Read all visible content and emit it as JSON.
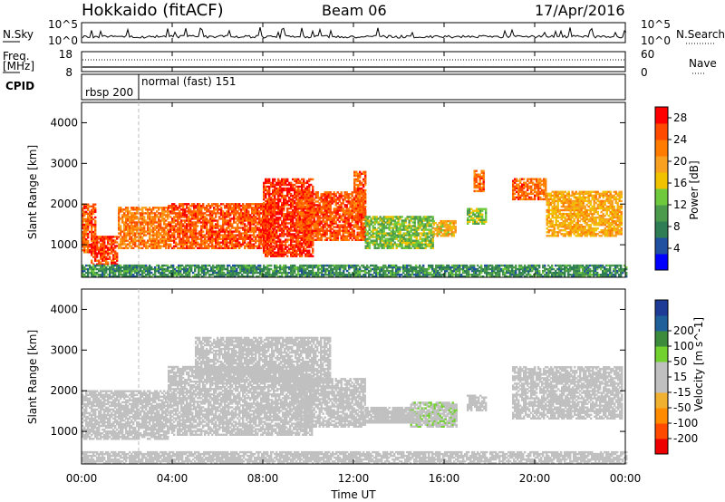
{
  "header": {
    "station": "Hokkaido (fitACF)",
    "beam": "Beam 06",
    "date": "17/Apr/2016"
  },
  "top_panels": {
    "nsky_label": "N.Sky",
    "nsky_tick_top": "10^5",
    "nsky_tick_bottom": "10^0",
    "nsearch_label": "N.Search",
    "freq_label_1": "Freq.",
    "freq_label_2": "[MHz]",
    "freq_tick_top": "18",
    "freq_tick_bottom": "8",
    "nave_tick_top": "60",
    "nave_tick_bottom": "0",
    "nave_label": "Nave",
    "cpid_label": "CPID",
    "cpid_1": "rbsp 200",
    "cpid_2": "normal (fast) 151"
  },
  "time_axis": {
    "xlabel": "Time UT",
    "ticks": [
      "00:00",
      "04:00",
      "08:00",
      "12:00",
      "16:00",
      "20:00",
      "00:00"
    ]
  },
  "colors": {
    "power_scale": [
      "#0000ff",
      "#2050a0",
      "#2e7d54",
      "#4c9a4c",
      "#6ec93c",
      "#f0c200",
      "#f8a020",
      "#ff7c00",
      "#ff4a00",
      "#ff0000"
    ],
    "velocity_scale": [
      "#ee0000",
      "#ff4a00",
      "#ff8c00",
      "#f0b030",
      "#c0c0c0",
      "#c0c0c0",
      "#72d12e",
      "#3c8a3c",
      "#20609a",
      "#1e3c96"
    ]
  },
  "chart_data": [
    {
      "type": "heatmap",
      "title": "Power",
      "ylabel": "Slant Range [km]",
      "xlabel": "",
      "x_range_hours": [
        0,
        24
      ],
      "ylim": [
        200,
        4500
      ],
      "y_ticks": [
        "1000",
        "2000",
        "3000",
        "4000"
      ],
      "colorbar": {
        "label": "Power [dB]",
        "ticks": [
          "4",
          "8",
          "12",
          "16",
          "20",
          "24",
          "28"
        ],
        "range": [
          0,
          30
        ]
      },
      "regions": [
        {
          "t": [
            0.0,
            0.6
          ],
          "r": [
            800,
            2000
          ],
          "v": 24
        },
        {
          "t": [
            0.4,
            1.6
          ],
          "r": [
            500,
            1200
          ],
          "v": 26
        },
        {
          "t": [
            1.6,
            3.8
          ],
          "r": [
            900,
            1900
          ],
          "v": 22
        },
        {
          "t": [
            3.8,
            8.5
          ],
          "r": [
            900,
            2000
          ],
          "v": 25
        },
        {
          "t": [
            8.0,
            10.2
          ],
          "r": [
            700,
            2600
          ],
          "v": 27
        },
        {
          "t": [
            9.5,
            12.5
          ],
          "r": [
            1100,
            2300
          ],
          "v": 25
        },
        {
          "t": [
            12.0,
            12.5
          ],
          "r": [
            1600,
            2800
          ],
          "v": 24
        },
        {
          "t": [
            12.5,
            15.5
          ],
          "r": [
            900,
            1700
          ],
          "v": 13
        },
        {
          "t": [
            15.5,
            16.5
          ],
          "r": [
            1200,
            1600
          ],
          "v": 18
        },
        {
          "t": [
            17.0,
            17.8
          ],
          "r": [
            1500,
            1900
          ],
          "v": 14
        },
        {
          "t": [
            17.3,
            17.7
          ],
          "r": [
            2300,
            2800
          ],
          "v": 24
        },
        {
          "t": [
            19.0,
            20.5
          ],
          "r": [
            2100,
            2600
          ],
          "v": 24
        },
        {
          "t": [
            20.5,
            23.8
          ],
          "r": [
            1200,
            2300
          ],
          "v": 19
        },
        {
          "t": [
            0.0,
            24.0
          ],
          "r": [
            200,
            500
          ],
          "v": 9
        }
      ]
    },
    {
      "type": "heatmap",
      "title": "Velocity",
      "ylabel": "Slant Range [km]",
      "xlabel": "Time UT",
      "x_range_hours": [
        0,
        24
      ],
      "ylim": [
        200,
        4500
      ],
      "y_ticks": [
        "1000",
        "2000",
        "3000",
        "4000"
      ],
      "colorbar": {
        "label": "Velocity [m s^-1]",
        "ticks": [
          "-200",
          "-100",
          "-50",
          "-15",
          "15",
          "50",
          "100",
          "200"
        ],
        "range": [
          -250,
          250
        ]
      },
      "regions": [
        {
          "t": [
            0.0,
            3.8
          ],
          "r": [
            800,
            2000
          ],
          "v": 0
        },
        {
          "t": [
            3.8,
            10.2
          ],
          "r": [
            900,
            2600
          ],
          "v": 0
        },
        {
          "t": [
            9.5,
            12.5
          ],
          "r": [
            1100,
            2300
          ],
          "v": 0
        },
        {
          "t": [
            5.0,
            11.0
          ],
          "r": [
            2200,
            3300
          ],
          "v": 0
        },
        {
          "t": [
            12.5,
            14.5
          ],
          "r": [
            1200,
            1600
          ],
          "v": 0
        },
        {
          "t": [
            14.5,
            16.5
          ],
          "r": [
            1100,
            1700
          ],
          "v": 40
        },
        {
          "t": [
            13.0,
            15.0
          ],
          "r": [
            1200,
            1500
          ],
          "v": -30
        },
        {
          "t": [
            17.0,
            17.8
          ],
          "r": [
            1500,
            1900
          ],
          "v": 0
        },
        {
          "t": [
            19.0,
            23.8
          ],
          "r": [
            1300,
            2600
          ],
          "v": 0
        },
        {
          "t": [
            0.0,
            24.0
          ],
          "r": [
            200,
            500
          ],
          "v": -30
        }
      ]
    }
  ]
}
